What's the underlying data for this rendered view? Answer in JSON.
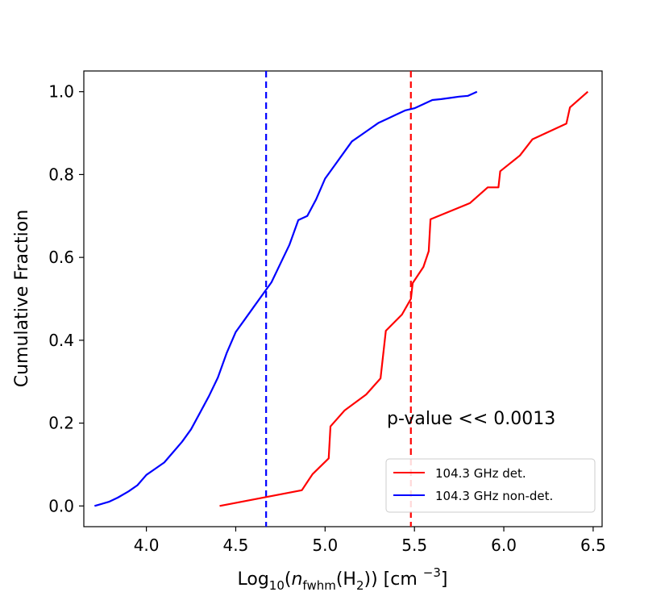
{
  "chart_data": {
    "type": "line",
    "title": "",
    "xlabel": {
      "prefix": "Log",
      "prefix_sub": "10",
      "open": "(",
      "var": "n",
      "var_sub": "fwhm",
      "arg": "(H",
      "arg_sub": "2",
      "close": ")) [cm ",
      "unit_sup": "−3",
      "end": "]"
    },
    "ylabel": "Cumulative Fraction",
    "xlim": [
      3.65,
      6.55
    ],
    "ylim": [
      -0.05,
      1.05
    ],
    "xticks": [
      "4.0",
      "4.5",
      "5.0",
      "5.5",
      "6.0",
      "6.5"
    ],
    "yticks": [
      "0.0",
      "0.2",
      "0.4",
      "0.6",
      "0.8",
      "1.0"
    ],
    "grid": false,
    "legend_position": "lower-right",
    "annotation": "p-value << 0.0013",
    "series": [
      {
        "name": "104.3 GHz det.",
        "color": "#ff0000",
        "x": [
          4.41,
          4.87,
          4.93,
          5.02,
          5.03,
          5.11,
          5.23,
          5.31,
          5.34,
          5.43,
          5.48,
          5.49,
          5.55,
          5.58,
          5.59,
          5.81,
          5.91,
          5.97,
          5.98,
          6.09,
          6.16,
          6.35,
          6.37,
          6.47
        ],
        "y": [
          0.0,
          0.038,
          0.077,
          0.115,
          0.192,
          0.231,
          0.269,
          0.308,
          0.423,
          0.462,
          0.5,
          0.538,
          0.577,
          0.615,
          0.692,
          0.731,
          0.769,
          0.769,
          0.808,
          0.846,
          0.885,
          0.923,
          0.962,
          1.0
        ]
      },
      {
        "name": "104.3 GHz non-det.",
        "color": "#0000ff",
        "x": [
          3.71,
          3.79,
          3.84,
          3.9,
          3.95,
          4.0,
          4.05,
          4.1,
          4.15,
          4.2,
          4.25,
          4.3,
          4.35,
          4.4,
          4.45,
          4.5,
          4.55,
          4.6,
          4.65,
          4.7,
          4.75,
          4.8,
          4.85,
          4.9,
          4.95,
          5.0,
          5.05,
          5.1,
          5.15,
          5.2,
          5.25,
          5.3,
          5.35,
          5.4,
          5.45,
          5.5,
          5.55,
          5.6,
          5.65,
          5.7,
          5.75,
          5.8,
          5.85
        ],
        "y": [
          0.0,
          0.01,
          0.02,
          0.035,
          0.05,
          0.075,
          0.09,
          0.105,
          0.13,
          0.155,
          0.185,
          0.225,
          0.265,
          0.31,
          0.37,
          0.42,
          0.45,
          0.48,
          0.51,
          0.54,
          0.585,
          0.63,
          0.69,
          0.7,
          0.74,
          0.79,
          0.82,
          0.85,
          0.88,
          0.895,
          0.91,
          0.925,
          0.935,
          0.945,
          0.955,
          0.96,
          0.97,
          0.98,
          0.982,
          0.985,
          0.988,
          0.99,
          1.0
        ]
      }
    ],
    "vlines": [
      {
        "x": 4.67,
        "color": "#0000ff",
        "style": "dashed"
      },
      {
        "x": 5.48,
        "color": "#ff0000",
        "style": "dashed"
      }
    ]
  }
}
